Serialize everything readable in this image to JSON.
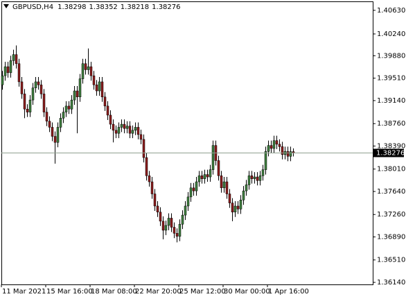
{
  "chart_data": {
    "type": "candlestick",
    "symbol": "GBPUSD,H4",
    "bull_color": "#3f7f3f",
    "bear_color": "#8b1c1c",
    "wick_color": "#000000",
    "price_line_color": "#8fa08f",
    "ylim": [
      1.36106,
      1.40766
    ],
    "yticks": [
      {
        "value": 1.4063,
        "label": "1.40630"
      },
      {
        "value": 1.4024,
        "label": "1.40240"
      },
      {
        "value": 1.3988,
        "label": "1.39880"
      },
      {
        "value": 1.3951,
        "label": "1.39510"
      },
      {
        "value": 1.3914,
        "label": "1.39140"
      },
      {
        "value": 1.3876,
        "label": "1.38760"
      },
      {
        "value": 1.3839,
        "label": "1.38390"
      },
      {
        "value": 1.3801,
        "label": "1.38010"
      },
      {
        "value": 1.3764,
        "label": "1.37640"
      },
      {
        "value": 1.3726,
        "label": "1.37260"
      },
      {
        "value": 1.3689,
        "label": "1.36890"
      },
      {
        "value": 1.3651,
        "label": "1.36510"
      },
      {
        "value": 1.3614,
        "label": "1.36140"
      }
    ],
    "x": [
      "11 Mar 2021",
      null,
      null,
      null,
      null,
      null,
      null,
      null,
      null,
      null,
      null,
      null,
      null,
      null,
      null,
      null,
      "15 Mar 16:00",
      null,
      null,
      null,
      null,
      null,
      null,
      null,
      null,
      null,
      null,
      null,
      null,
      null,
      null,
      null,
      "18 Mar 08:00",
      null,
      null,
      null,
      null,
      null,
      null,
      null,
      null,
      null,
      null,
      null,
      null,
      null,
      null,
      null,
      "22 Mar 20:00",
      null,
      null,
      null,
      null,
      null,
      null,
      null,
      null,
      null,
      null,
      null,
      null,
      null,
      null,
      null,
      "25 Mar 12:00",
      null,
      null,
      null,
      null,
      null,
      null,
      null,
      null,
      null,
      null,
      null,
      null,
      null,
      null,
      null,
      "30 Mar 00:00",
      null,
      null,
      null,
      null,
      null,
      null,
      null,
      null,
      null,
      null,
      null,
      null,
      null,
      null,
      null,
      "1 Apr 16:00",
      null,
      null,
      null,
      null,
      null,
      null,
      null,
      null,
      null
    ],
    "open": [
      1.394,
      1.3955,
      1.397,
      1.396,
      1.398,
      1.399,
      1.3975,
      1.3945,
      1.3925,
      1.39,
      1.3895,
      1.3915,
      1.3935,
      1.3945,
      1.394,
      1.3925,
      1.3895,
      1.388,
      1.387,
      1.3855,
      1.3845,
      1.387,
      1.3885,
      1.3895,
      1.3905,
      1.39,
      1.3915,
      1.393,
      1.392,
      1.395,
      1.3975,
      1.3965,
      1.397,
      1.3955,
      1.394,
      1.393,
      1.3945,
      1.392,
      1.3905,
      1.389,
      1.3875,
      1.3865,
      1.386,
      1.387,
      1.3875,
      1.3868,
      1.3872,
      1.386,
      1.3865,
      1.387,
      1.3858,
      1.385,
      1.382,
      1.379,
      1.378,
      1.376,
      1.374,
      1.373,
      1.3715,
      1.37,
      1.3708,
      1.372,
      1.3705,
      1.3695,
      1.369,
      1.371,
      1.3725,
      1.374,
      1.3755,
      1.377,
      1.3765,
      1.378,
      1.379,
      1.3785,
      1.3792,
      1.3788,
      1.38,
      1.384,
      1.3815,
      1.379,
      1.377,
      1.378,
      1.376,
      1.3745,
      1.373,
      1.374,
      1.3735,
      1.375,
      1.3765,
      1.3775,
      1.379,
      1.3785,
      1.3788,
      1.3782,
      1.379,
      1.38,
      1.383,
      1.384,
      1.3835,
      1.3848,
      1.3842,
      1.3838,
      1.3825,
      1.383,
      1.3822,
      1.38298
    ],
    "high": [
      1.3963,
      1.3978,
      1.3978,
      1.3988,
      1.3998,
      1.4005,
      1.3983,
      1.3953,
      1.3933,
      1.3908,
      1.3923,
      1.3943,
      1.3953,
      1.3953,
      1.3948,
      1.3933,
      1.3903,
      1.3888,
      1.3878,
      1.3863,
      1.3878,
      1.3893,
      1.3903,
      1.3913,
      1.3913,
      1.3923,
      1.3938,
      1.3938,
      1.3958,
      1.3983,
      1.3983,
      1.4,
      1.3978,
      1.3963,
      1.3948,
      1.3953,
      1.3953,
      1.3928,
      1.3913,
      1.3898,
      1.3883,
      1.3873,
      1.3878,
      1.3883,
      1.3883,
      1.388,
      1.388,
      1.3873,
      1.3878,
      1.3878,
      1.3866,
      1.3858,
      1.3828,
      1.3798,
      1.3788,
      1.3768,
      1.3748,
      1.3738,
      1.3723,
      1.3716,
      1.3728,
      1.3728,
      1.3713,
      1.3703,
      1.3718,
      1.3733,
      1.3748,
      1.3763,
      1.3778,
      1.3778,
      1.3788,
      1.3798,
      1.3798,
      1.38,
      1.38,
      1.3808,
      1.3848,
      1.3848,
      1.3823,
      1.3798,
      1.3788,
      1.3788,
      1.3768,
      1.3753,
      1.3748,
      1.3748,
      1.3758,
      1.3773,
      1.3783,
      1.3798,
      1.3798,
      1.3796,
      1.3796,
      1.3798,
      1.3808,
      1.3838,
      1.3848,
      1.3848,
      1.3856,
      1.3856,
      1.385,
      1.3846,
      1.3838,
      1.3838,
      1.3838,
      1.38352
    ],
    "low": [
      1.3932,
      1.3947,
      1.3952,
      1.3952,
      1.3972,
      1.3967,
      1.3937,
      1.3917,
      1.3885,
      1.3887,
      1.3887,
      1.3907,
      1.3927,
      1.3932,
      1.3917,
      1.3887,
      1.3872,
      1.3862,
      1.3847,
      1.381,
      1.3837,
      1.3862,
      1.3877,
      1.3887,
      1.3892,
      1.3892,
      1.3907,
      1.386,
      1.3912,
      1.3942,
      1.3957,
      1.3957,
      1.3947,
      1.3932,
      1.3922,
      1.3922,
      1.3912,
      1.3897,
      1.3882,
      1.3867,
      1.3845,
      1.3852,
      1.3852,
      1.3862,
      1.386,
      1.386,
      1.3852,
      1.3852,
      1.3857,
      1.385,
      1.3842,
      1.3812,
      1.3782,
      1.3772,
      1.3752,
      1.3732,
      1.3722,
      1.3707,
      1.3685,
      1.3692,
      1.37,
      1.3697,
      1.3687,
      1.368,
      1.3682,
      1.3702,
      1.3717,
      1.3732,
      1.3747,
      1.3757,
      1.3757,
      1.3772,
      1.3777,
      1.3777,
      1.378,
      1.378,
      1.3792,
      1.3807,
      1.3782,
      1.3762,
      1.3762,
      1.3752,
      1.3737,
      1.3715,
      1.3722,
      1.3727,
      1.3727,
      1.3742,
      1.3757,
      1.3767,
      1.3777,
      1.3777,
      1.3774,
      1.3774,
      1.3782,
      1.3792,
      1.3822,
      1.3827,
      1.3827,
      1.3834,
      1.383,
      1.3817,
      1.3817,
      1.3814,
      1.3814,
      1.38218
    ],
    "close": [
      1.3955,
      1.397,
      1.396,
      1.398,
      1.399,
      1.3975,
      1.3945,
      1.3925,
      1.39,
      1.3895,
      1.3915,
      1.3935,
      1.3945,
      1.394,
      1.3925,
      1.3895,
      1.388,
      1.387,
      1.3855,
      1.3845,
      1.387,
      1.3885,
      1.3895,
      1.3905,
      1.39,
      1.3915,
      1.393,
      1.392,
      1.395,
      1.3975,
      1.3965,
      1.397,
      1.3955,
      1.394,
      1.393,
      1.3945,
      1.392,
      1.3905,
      1.389,
      1.3875,
      1.3865,
      1.386,
      1.387,
      1.3875,
      1.3868,
      1.3872,
      1.386,
      1.3865,
      1.387,
      1.3858,
      1.385,
      1.382,
      1.379,
      1.378,
      1.376,
      1.374,
      1.373,
      1.3715,
      1.37,
      1.3708,
      1.372,
      1.3705,
      1.3695,
      1.369,
      1.371,
      1.3725,
      1.374,
      1.3755,
      1.377,
      1.3765,
      1.378,
      1.379,
      1.3785,
      1.3792,
      1.3788,
      1.38,
      1.384,
      1.3815,
      1.379,
      1.377,
      1.378,
      1.376,
      1.3745,
      1.373,
      1.374,
      1.3735,
      1.375,
      1.3765,
      1.3775,
      1.379,
      1.3785,
      1.3788,
      1.3782,
      1.379,
      1.38,
      1.383,
      1.384,
      1.3835,
      1.3848,
      1.3842,
      1.3838,
      1.3825,
      1.383,
      1.3822,
      1.38298,
      1.38276
    ]
  }
}
